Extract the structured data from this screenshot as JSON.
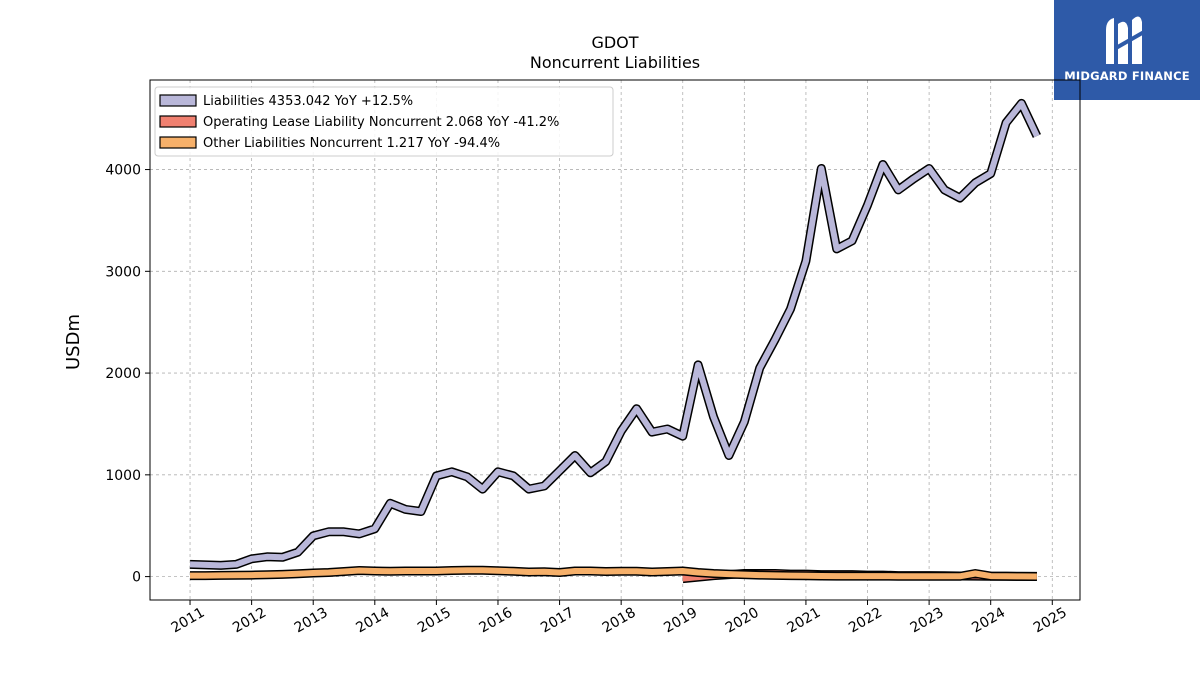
{
  "brand": {
    "name": "MIDGARD FINANCE",
    "logo_color": "#2e5aa8",
    "icon": "midgard-logo-icon"
  },
  "chart_data": {
    "type": "line",
    "title": "GDOT",
    "subtitle": "Noncurrent  Liabilities",
    "xlabel": "",
    "ylabel": "USDm",
    "xlim": [
      2010.35,
      2025.45
    ],
    "ylim": [
      -230,
      4880
    ],
    "xticks": [
      2011,
      2012,
      2013,
      2014,
      2015,
      2016,
      2017,
      2018,
      2019,
      2020,
      2021,
      2022,
      2023,
      2024,
      2025
    ],
    "yticks": [
      0,
      1000,
      2000,
      3000,
      4000
    ],
    "grid": true,
    "legend_position": "top-left",
    "series": [
      {
        "name": "Liabilities",
        "legend": "Liabilities  4353.042 YoY +12.5%",
        "color": "#b9b7d9",
        "x": [
          2011.0,
          2011.25,
          2011.5,
          2011.75,
          2012.0,
          2012.25,
          2012.5,
          2012.75,
          2013.0,
          2013.25,
          2013.5,
          2013.75,
          2014.0,
          2014.25,
          2014.5,
          2014.75,
          2015.0,
          2015.25,
          2015.5,
          2015.75,
          2016.0,
          2016.25,
          2016.5,
          2016.75,
          2017.0,
          2017.25,
          2017.5,
          2017.75,
          2018.0,
          2018.25,
          2018.5,
          2018.75,
          2019.0,
          2019.25,
          2019.5,
          2019.75,
          2020.0,
          2020.25,
          2020.5,
          2020.75,
          2021.0,
          2021.25,
          2021.5,
          2021.75,
          2022.0,
          2022.25,
          2022.5,
          2022.75,
          2023.0,
          2023.25,
          2023.5,
          2023.75,
          2024.0,
          2024.25,
          2024.5,
          2024.75
        ],
        "values": [
          120,
          115,
          110,
          120,
          175,
          195,
          190,
          240,
          400,
          440,
          440,
          420,
          470,
          720,
          660,
          640,
          990,
          1030,
          980,
          860,
          1030,
          990,
          860,
          890,
          1040,
          1190,
          1020,
          1130,
          1430,
          1650,
          1420,
          1450,
          1380,
          2080,
          1570,
          1190,
          1520,
          2050,
          2330,
          2630,
          3100,
          4010,
          3220,
          3300,
          3650,
          4050,
          3800,
          3910,
          4010,
          3800,
          3720,
          3870,
          3960,
          4460,
          4650,
          4330
        ]
      },
      {
        "name": "Operating Lease Liability Noncurrent",
        "legend": "Operating Lease Liability Noncurrent  2.068 YoY -41.2%",
        "color": "#f08070",
        "x": [
          2019.0,
          2019.25,
          2019.5,
          2019.75,
          2020.0,
          2020.25,
          2020.5,
          2020.75,
          2021.0,
          2021.25,
          2021.5,
          2021.75,
          2022.0,
          2022.25,
          2022.5,
          2022.75,
          2023.0,
          2023.25,
          2023.5,
          2023.75,
          2024.0,
          2024.25,
          2024.5,
          2024.75
        ],
        "values": [
          -20,
          -5,
          10,
          20,
          30,
          30,
          30,
          25,
          25,
          20,
          20,
          20,
          15,
          15,
          10,
          10,
          10,
          8,
          6,
          5,
          4,
          3,
          2,
          2
        ]
      },
      {
        "name": "Other Liabilities Noncurrent",
        "legend": "Other Liabilities Noncurrent  1.217 YoY -94.4%",
        "color": "#f6b06a",
        "x": [
          2011.0,
          2011.25,
          2011.5,
          2011.75,
          2012.0,
          2012.25,
          2012.5,
          2012.75,
          2013.0,
          2013.25,
          2013.5,
          2013.75,
          2014.0,
          2014.25,
          2014.5,
          2014.75,
          2015.0,
          2015.25,
          2015.5,
          2015.75,
          2016.0,
          2016.25,
          2016.5,
          2016.75,
          2017.0,
          2017.25,
          2017.5,
          2017.75,
          2018.0,
          2018.25,
          2018.5,
          2018.75,
          2019.0,
          2019.25,
          2019.5,
          2019.75,
          2020.0,
          2020.25,
          2020.5,
          2020.75,
          2021.0,
          2021.25,
          2021.5,
          2021.75,
          2022.0,
          2022.25,
          2022.5,
          2022.75,
          2023.0,
          2023.25,
          2023.5,
          2023.75,
          2024.0,
          2024.25,
          2024.5,
          2024.75
        ],
        "values": [
          10,
          10,
          12,
          13,
          15,
          18,
          22,
          28,
          35,
          40,
          50,
          60,
          55,
          52,
          55,
          55,
          55,
          60,
          62,
          62,
          58,
          52,
          45,
          48,
          40,
          55,
          55,
          50,
          52,
          52,
          45,
          50,
          55,
          40,
          30,
          25,
          20,
          15,
          12,
          10,
          8,
          6,
          5,
          5,
          5,
          5,
          4,
          4,
          4,
          3,
          3,
          30,
          5,
          3,
          2,
          1
        ]
      }
    ]
  }
}
